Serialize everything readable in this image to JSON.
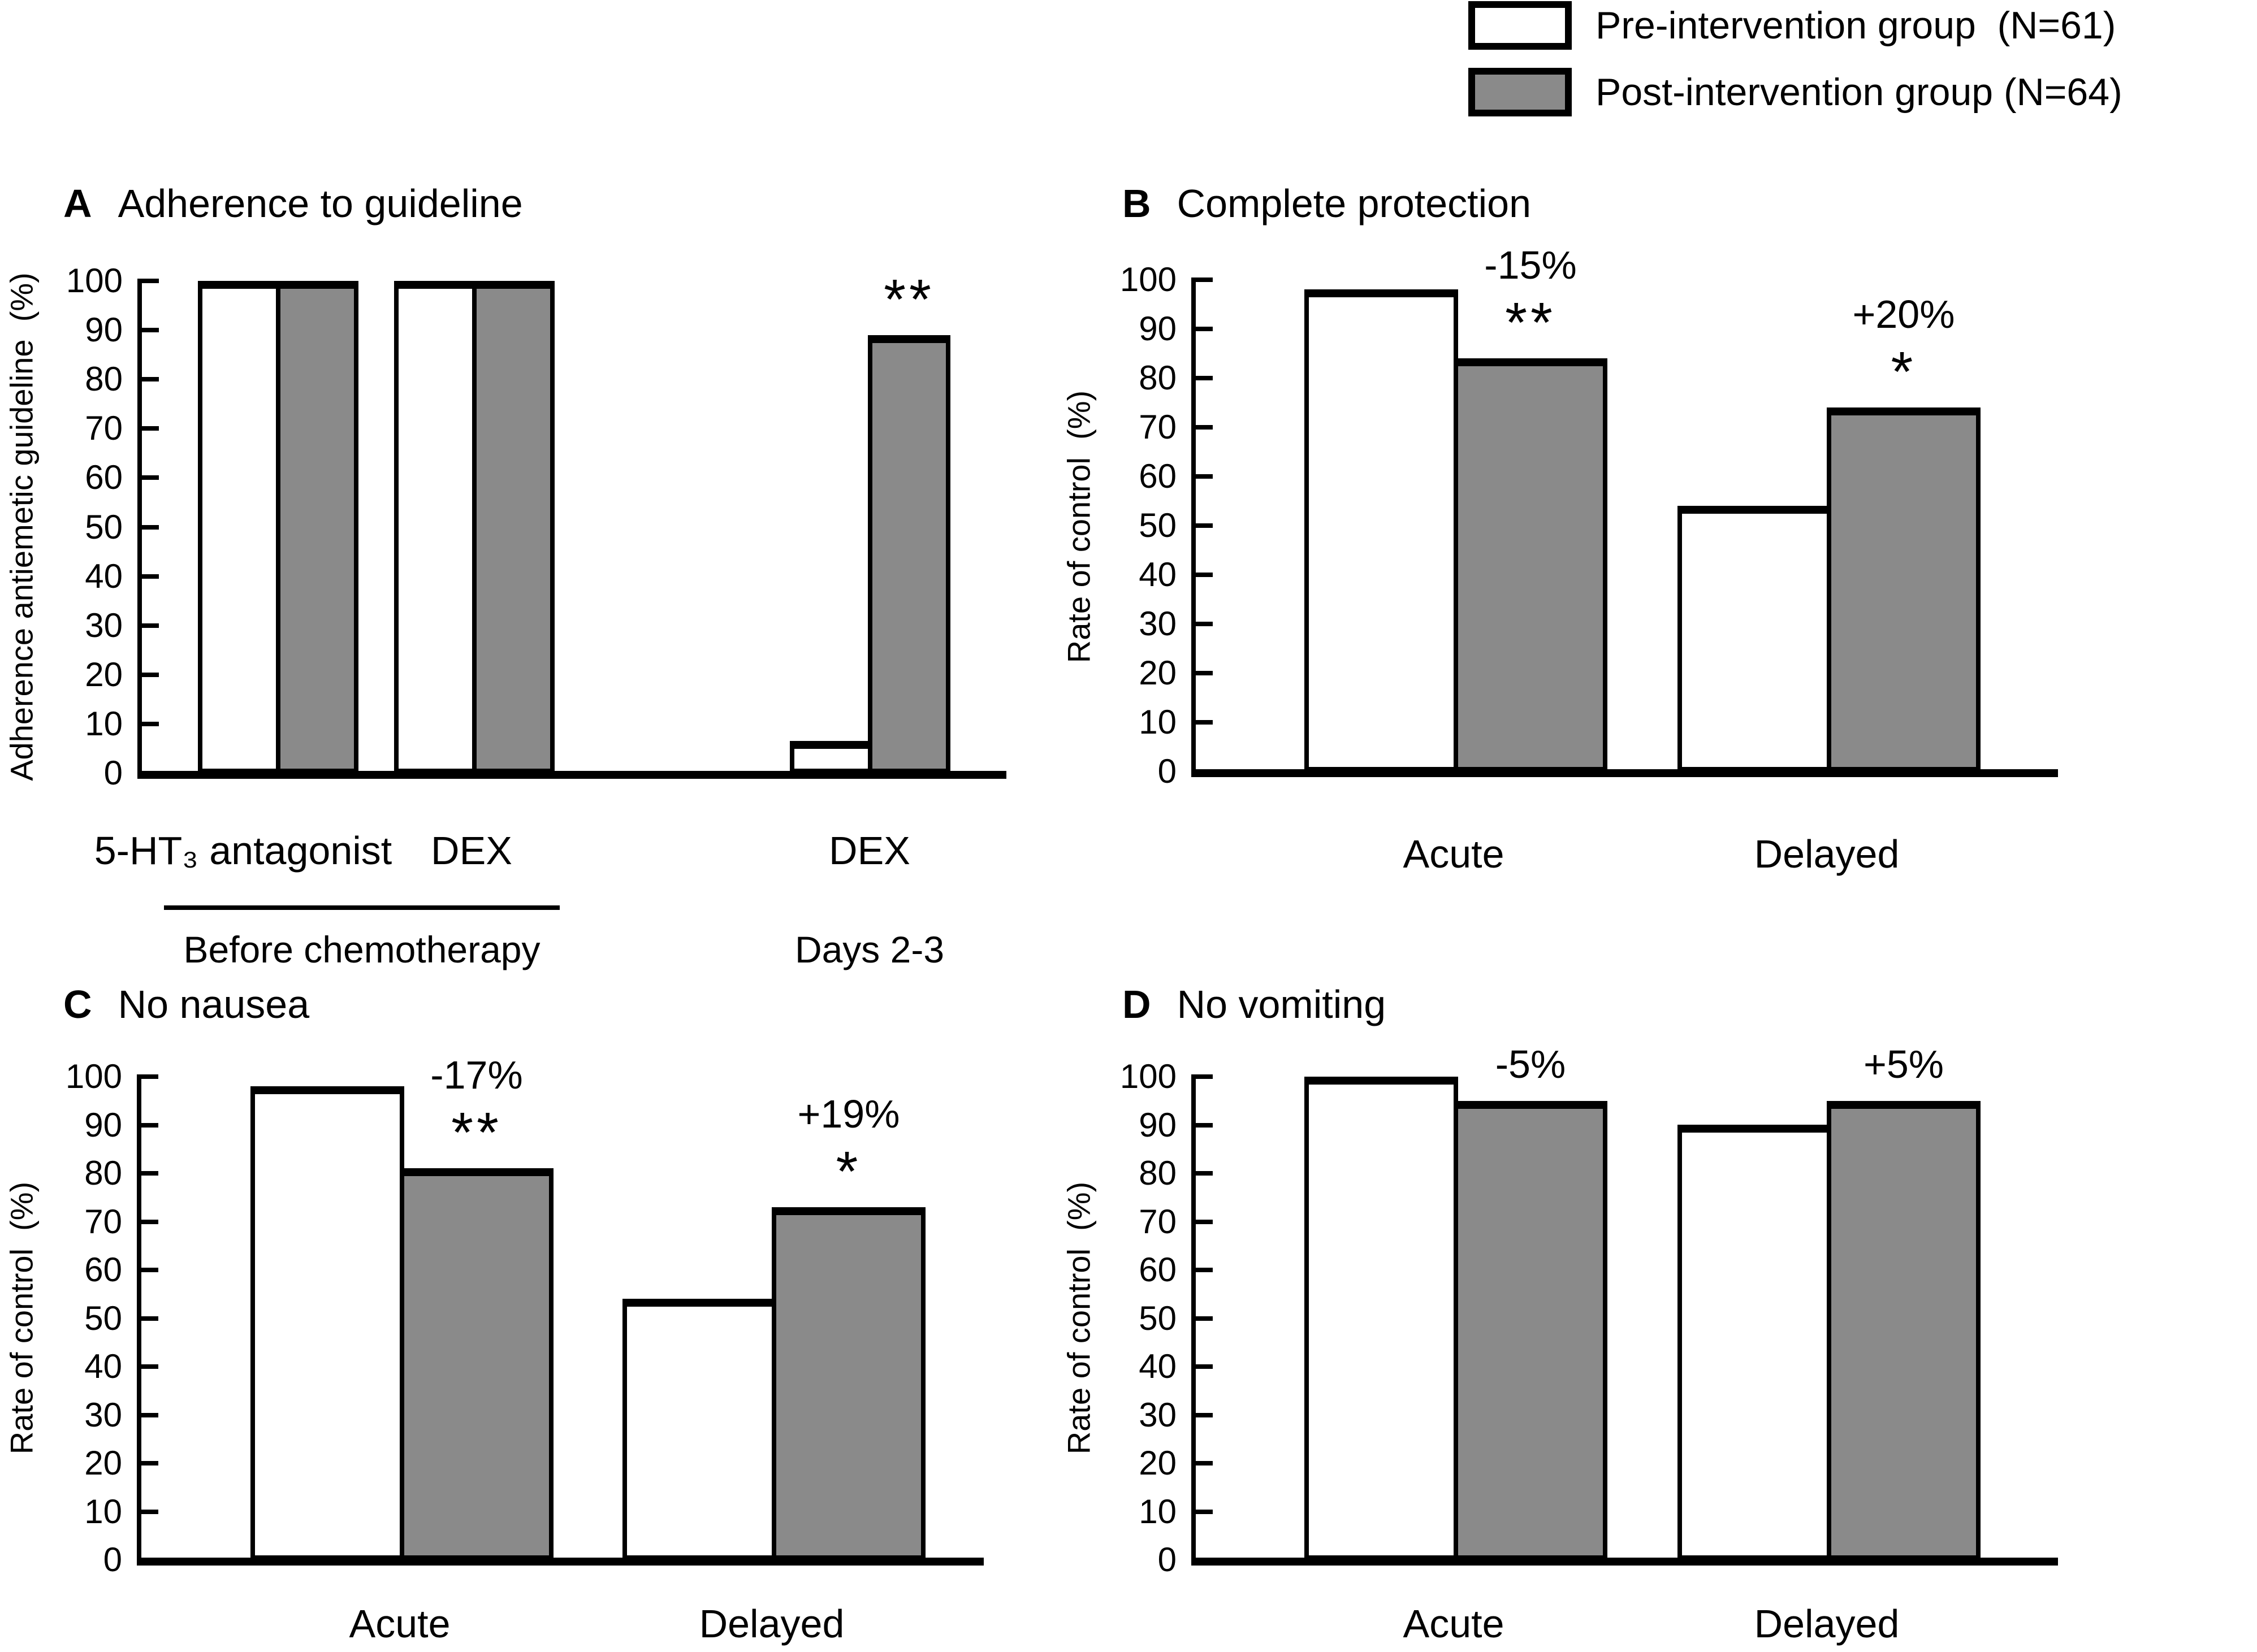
{
  "figure": {
    "colors": {
      "pre_fill": "#ffffff",
      "post_fill": "#8a8a8a",
      "ink": "#000000"
    },
    "legend": {
      "items": [
        {
          "swatch": "white",
          "label": "Pre-intervention group  (N=61)"
        },
        {
          "swatch": "gray",
          "label": "Post-intervention group (N=64)"
        }
      ]
    }
  },
  "chart_data": [
    {
      "id": "A",
      "type": "bar",
      "panel_letter": "A",
      "title": "Adherence to guideline",
      "ylabel": "Adherence antiemetic guideline  (%)",
      "ylim": [
        0,
        100
      ],
      "ytick_step": 10,
      "series_names": [
        "Pre-intervention group",
        "Post-intervention group"
      ],
      "groups": [
        {
          "label": "5-HT₃ antagonist",
          "pre": 100,
          "post": 100
        },
        {
          "label": "DEX",
          "pre": 100,
          "post": 100
        },
        {
          "label": "DEX",
          "pre": 6.5,
          "post": 89,
          "sig": "**"
        }
      ],
      "footnotes": [
        {
          "text": "Before chemotherapy",
          "underlined": true
        },
        {
          "text": "Days 2-3",
          "underlined": false
        }
      ]
    },
    {
      "id": "B",
      "type": "bar",
      "panel_letter": "B",
      "title": "Complete protection",
      "ylabel": "Rate of control  (%)",
      "ylim": [
        0,
        100
      ],
      "ytick_step": 10,
      "series_names": [
        "Pre-intervention group",
        "Post-intervention group"
      ],
      "groups": [
        {
          "label": "Acute",
          "pre": 98,
          "post": 84,
          "delta": "-15%",
          "sig": "**"
        },
        {
          "label": "Delayed",
          "pre": 54,
          "post": 74,
          "delta": "+20%",
          "sig": "*"
        }
      ]
    },
    {
      "id": "C",
      "type": "bar",
      "panel_letter": "C",
      "title": "No nausea",
      "ylabel": "Rate of control  (%)",
      "ylim": [
        0,
        100
      ],
      "ytick_step": 10,
      "series_names": [
        "Pre-intervention group",
        "Post-intervention group"
      ],
      "groups": [
        {
          "label": "Acute",
          "pre": 98,
          "post": 81,
          "delta": "-17%",
          "sig": "**"
        },
        {
          "label": "Delayed",
          "pre": 54,
          "post": 73,
          "delta": "+19%",
          "sig": "*"
        }
      ]
    },
    {
      "id": "D",
      "type": "bar",
      "panel_letter": "D",
      "title": "No vomiting",
      "ylabel": "Rate of control  (%)",
      "ylim": [
        0,
        100
      ],
      "ytick_step": 10,
      "series_names": [
        "Pre-intervention group",
        "Post-intervention group"
      ],
      "groups": [
        {
          "label": "Acute",
          "pre": 100,
          "post": 95,
          "delta": "-5%"
        },
        {
          "label": "Delayed",
          "pre": 90,
          "post": 95,
          "delta": "+5%"
        }
      ]
    }
  ]
}
